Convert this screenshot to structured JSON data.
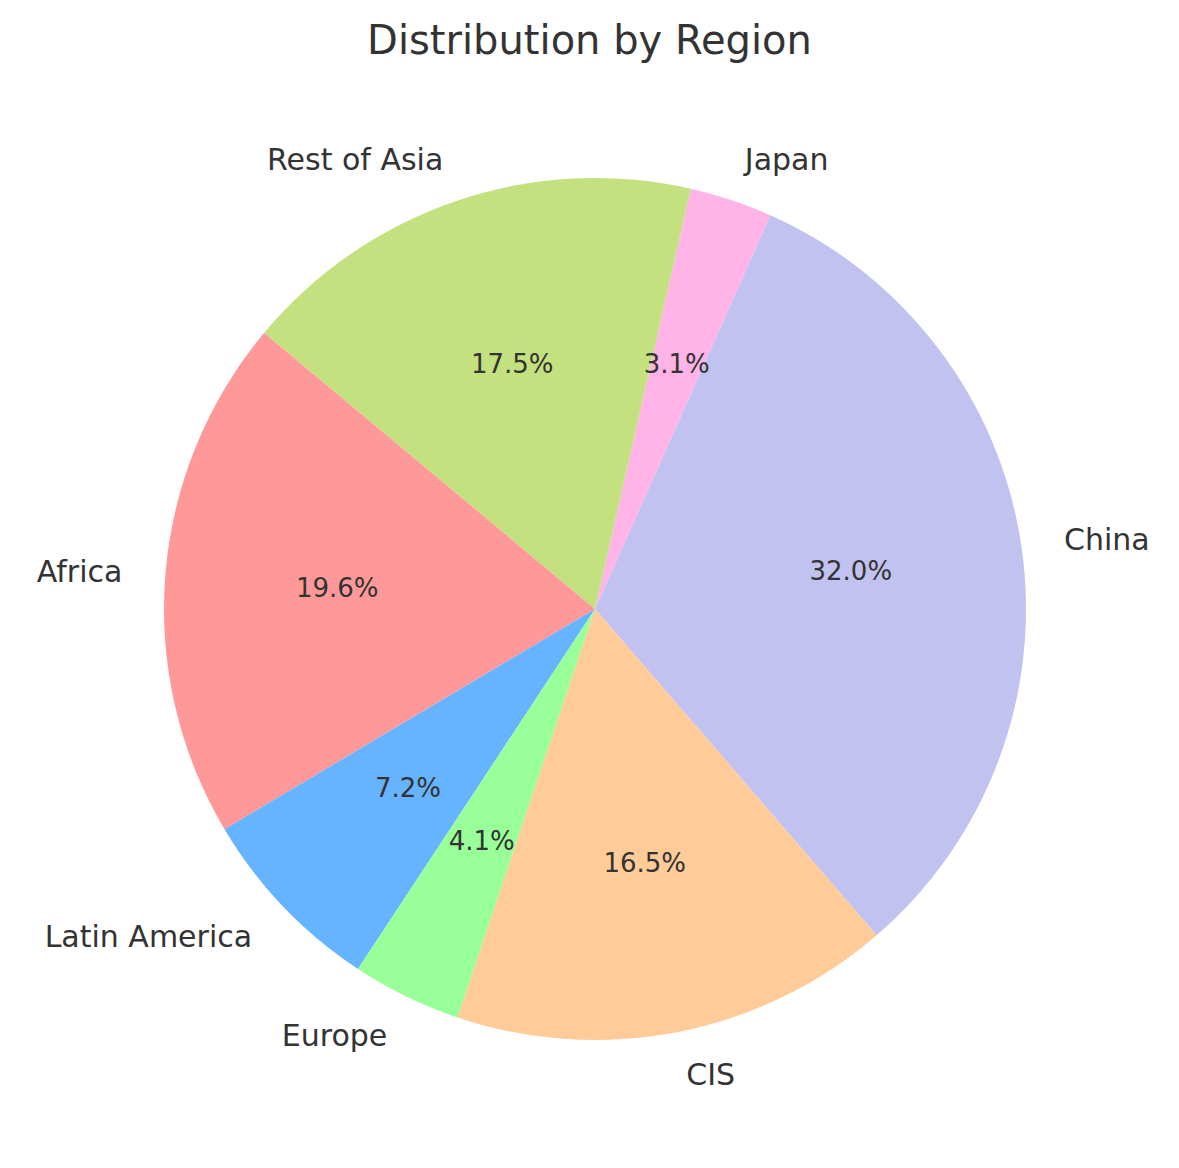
{
  "chart_data": {
    "type": "pie",
    "title": "Distribution by Region",
    "categories": [
      "China",
      "Japan",
      "Rest of Asia",
      "Africa",
      "Latin America",
      "Europe",
      "CIS"
    ],
    "values": [
      32.0,
      3.1,
      17.5,
      19.6,
      7.2,
      4.1,
      16.5
    ],
    "value_labels": [
      "32.0%",
      "3.1%",
      "17.5%",
      "19.6%",
      "7.2%",
      "4.1%",
      "16.5%"
    ],
    "colors": [
      "#c2c2f0",
      "#ffb3e6",
      "#c4e17f",
      "#ff9999",
      "#66b3ff",
      "#99ff99",
      "#ffcc99"
    ],
    "data_labels": true
  }
}
